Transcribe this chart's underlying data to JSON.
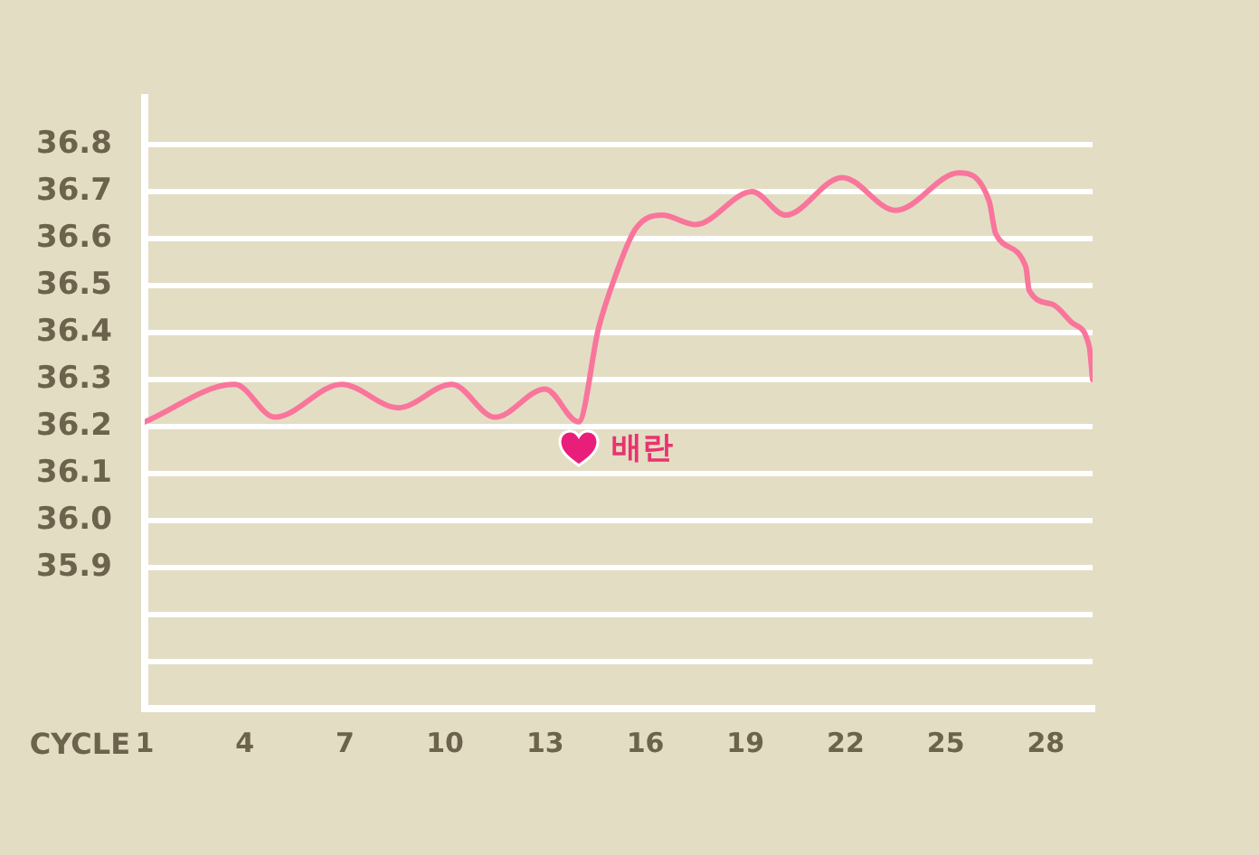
{
  "chart_data": {
    "type": "line",
    "xlabel": "CYCLE",
    "x": [
      1.0,
      3.7,
      4.9,
      6.9,
      8.6,
      10.2,
      11.5,
      13.0,
      14.0,
      14.6,
      15.1,
      15.7,
      16.5,
      17.5,
      19.2,
      20.2,
      21.9,
      23.5,
      25.4,
      26.3,
      26.5,
      27.4,
      27.5,
      28.2,
      28.8,
      29.3,
      29.4
    ],
    "series": [
      {
        "color": "#f9759b",
        "values": [
          36.21,
          36.29,
          36.22,
          36.29,
          36.24,
          36.29,
          36.22,
          36.28,
          36.21,
          36.41,
          36.52,
          36.62,
          36.65,
          36.63,
          36.7,
          36.65,
          36.73,
          36.66,
          36.74,
          36.68,
          36.61,
          36.54,
          36.49,
          36.46,
          36.42,
          36.37,
          36.3
        ]
      }
    ],
    "xlim": [
      1,
      29.4
    ],
    "xticks": [
      1,
      4,
      7,
      10,
      13,
      16,
      19,
      22,
      25,
      28
    ],
    "ylim": [
      35.6,
      36.9
    ],
    "yticks": [
      {
        "value": 35.7,
        "label": null
      },
      {
        "value": 35.8,
        "label": null
      },
      35.9,
      {
        "value": 36,
        "label": "36.0"
      },
      36.1,
      36.2,
      36.3,
      36.4,
      36.5,
      36.6,
      36.7,
      36.8
    ],
    "grid": "y",
    "annotations": [
      {
        "text": "배란",
        "x": 14.0,
        "y": 36.21
      }
    ]
  }
}
